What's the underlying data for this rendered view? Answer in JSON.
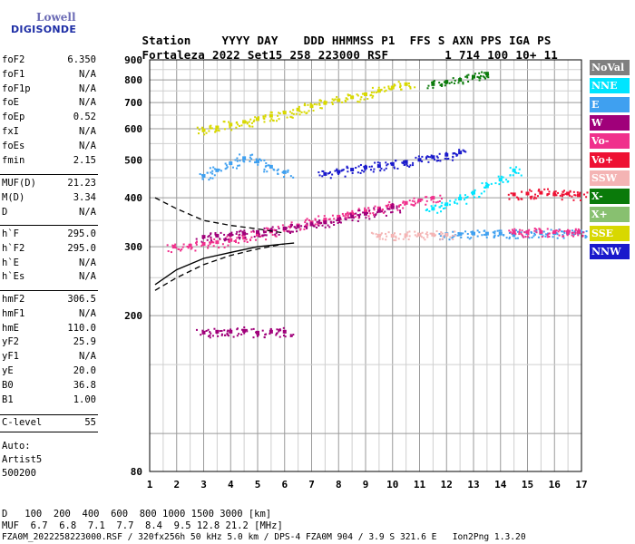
{
  "logo": {
    "line1": "Lowell",
    "line2": "DIGISONDE"
  },
  "header": {
    "row1": [
      "Station",
      "YYYY",
      "DAY",
      "DDD",
      "HHMMSS",
      "P1",
      "FFS",
      "S",
      "AXN",
      "PPS",
      "IGA",
      "PS"
    ],
    "row2": [
      "Fortaleza",
      "2022",
      "Set15",
      "258",
      "223000",
      "RSF",
      "",
      "1",
      "714",
      "100",
      "10+",
      "11"
    ]
  },
  "params_group1": [
    {
      "label": "foF2",
      "value": "6.350"
    },
    {
      "label": "foF1",
      "value": "N/A"
    },
    {
      "label": "foF1p",
      "value": "N/A"
    },
    {
      "label": "foE",
      "value": "N/A"
    },
    {
      "label": "foEp",
      "value": "0.52"
    },
    {
      "label": "fxI",
      "value": "N/A"
    },
    {
      "label": "foEs",
      "value": "N/A"
    },
    {
      "label": "fmin",
      "value": "2.15"
    }
  ],
  "params_group2": [
    {
      "label": "MUF(D)",
      "value": "21.23"
    },
    {
      "label": "M(D)",
      "value": "3.34"
    },
    {
      "label": "D",
      "value": "N/A"
    }
  ],
  "params_group3": [
    {
      "label": "h`F",
      "value": "295.0"
    },
    {
      "label": "h`F2",
      "value": "295.0"
    },
    {
      "label": "h`E",
      "value": "N/A"
    },
    {
      "label": "h`Es",
      "value": "N/A"
    }
  ],
  "params_group4": [
    {
      "label": "hmF2",
      "value": "306.5"
    },
    {
      "label": "hmF1",
      "value": "N/A"
    },
    {
      "label": "hmE",
      "value": "110.0"
    },
    {
      "label": "yF2",
      "value": "25.9"
    },
    {
      "label": "yF1",
      "value": "N/A"
    },
    {
      "label": "yE",
      "value": "20.0"
    },
    {
      "label": "B0",
      "value": "36.8"
    },
    {
      "label": "B1",
      "value": "1.00"
    }
  ],
  "clevel": {
    "label": "C-level",
    "value": "55"
  },
  "auto": {
    "line1": "Auto:",
    "line2": "Artist5",
    "line3": "500200"
  },
  "legend": [
    {
      "label": "NoVal",
      "bg": "#808080",
      "fg": "#ffffff"
    },
    {
      "label": "NNE",
      "bg": "#00e5ff",
      "fg": "#ffffff"
    },
    {
      "label": "E",
      "bg": "#3fa0f0",
      "fg": "#ffffff"
    },
    {
      "label": "W",
      "bg": "#a0007a",
      "fg": "#ffffff"
    },
    {
      "label": "Vo-",
      "bg": "#f0308c",
      "fg": "#ffffff"
    },
    {
      "label": "Vo+",
      "bg": "#ee1133",
      "fg": "#ffffff"
    },
    {
      "label": "SSW",
      "bg": "#f4b4b4",
      "fg": "#ffffff"
    },
    {
      "label": "X-",
      "bg": "#0a7a0a",
      "fg": "#ffffff"
    },
    {
      "label": "X+",
      "bg": "#88c070",
      "fg": "#ffffff"
    },
    {
      "label": "SSE",
      "bg": "#d8d800",
      "fg": "#ffffff"
    },
    {
      "label": "NNW",
      "bg": "#1a1acc",
      "fg": "#ffffff"
    }
  ],
  "bottom": {
    "d_label": "D",
    "d_values": "   100  200  400  600  800 1000 1500 3000 [km]",
    "muf_label": "MUF",
    "muf_values": "  6.7  6.8  7.1  7.7  8.4  9.5 12.8 21.2 [MHz]",
    "footer": "FZA0M_2022258223000.RSF / 320fx256h 50 kHz 5.0 km / DPS-4 FZA0M 904 / 3.9 S 321.6 E   Ion2Png 1.3.20"
  },
  "chart_data": {
    "type": "scatter",
    "xlim": [
      1,
      17
    ],
    "ylim": [
      80,
      900
    ],
    "x_ticks": [
      1,
      2,
      3,
      4,
      5,
      6,
      7,
      8,
      9,
      10,
      11,
      12,
      13,
      14,
      15,
      16,
      17
    ],
    "y_ticks": [
      80,
      200,
      300,
      400,
      500,
      600,
      700,
      800,
      900
    ],
    "y_scale": "log",
    "grid": true,
    "legend_position": "right",
    "traces": [
      {
        "name": "o-trace",
        "color": "#f0308c",
        "x": [
          1.9,
          2.5,
          3.0,
          3.5,
          4.0,
          4.5,
          5.0,
          5.5,
          6.0,
          6.5,
          7.0,
          7.5,
          8.0,
          8.5,
          9.0,
          9.5,
          10.0,
          10.5,
          11.0,
          11.5
        ],
        "y": [
          300,
          302,
          305,
          308,
          312,
          316,
          322,
          328,
          334,
          340,
          346,
          352,
          358,
          364,
          370,
          376,
          382,
          388,
          394,
          400
        ]
      },
      {
        "name": "x-trace",
        "color": "#a0007a",
        "x": [
          3.0,
          3.5,
          4.0,
          4.5,
          5.0,
          5.5,
          6.0,
          6.5,
          7.0,
          7.5,
          8.0,
          8.5,
          9.0,
          9.5,
          10.0
        ],
        "y": [
          318,
          320,
          322,
          324,
          327,
          330,
          334,
          338,
          342,
          346,
          352,
          358,
          364,
          370,
          378
        ]
      },
      {
        "name": "second-hop",
        "color": "#d8d800",
        "x": [
          3.0,
          3.5,
          4.0,
          4.5,
          5.0,
          5.5,
          6.0,
          6.5,
          7.0,
          7.5,
          8.0,
          8.5,
          9.0,
          9.5,
          10.0,
          10.5
        ],
        "y": [
          595,
          605,
          615,
          625,
          635,
          648,
          660,
          672,
          685,
          698,
          710,
          722,
          735,
          750,
          765,
          780
        ]
      },
      {
        "name": "third-hop",
        "color": "#0a7a0a",
        "x": [
          11.5,
          12.0,
          12.5,
          13.0,
          13.5
        ],
        "y": [
          780,
          790,
          800,
          815,
          830
        ]
      },
      {
        "name": "blue-cloud",
        "color": "#3fa0f0",
        "x": [
          3.0,
          3.5,
          4.0,
          4.5,
          5.0,
          5.5,
          6.0
        ],
        "y": [
          455,
          470,
          490,
          505,
          495,
          480,
          465
        ]
      },
      {
        "name": "upper-line",
        "color": "#1a1acc",
        "x": [
          7.5,
          8.0,
          8.5,
          9.0,
          9.5,
          10.0,
          10.5,
          11.0,
          11.5,
          12.0,
          12.5
        ],
        "y": [
          460,
          466,
          472,
          478,
          482,
          488,
          494,
          500,
          508,
          515,
          522
        ]
      },
      {
        "name": "ext-blue",
        "color": "#3fa0f0",
        "x": [
          12.0,
          12.5,
          13.0,
          13.5,
          14.0,
          14.5,
          15.0,
          15.5,
          16.0,
          16.5,
          16.9
        ],
        "y": [
          323,
          323,
          324,
          324,
          324,
          324,
          325,
          325,
          325,
          325,
          326
        ]
      },
      {
        "name": "ext-magenta",
        "color": "#f0308c",
        "x": [
          14.5,
          15.0,
          15.5,
          16.0,
          16.5,
          16.9
        ],
        "y": [
          327,
          327,
          327,
          327,
          327,
          327
        ]
      },
      {
        "name": "upper-cyan",
        "color": "#00e5ff",
        "x": [
          11.5,
          12.0,
          12.5,
          13.0,
          13.5,
          14.0,
          14.5
        ],
        "y": [
          375,
          385,
          398,
          412,
          428,
          445,
          470
        ]
      },
      {
        "name": "red-tail",
        "color": "#ee1133",
        "x": [
          14.5,
          15.0,
          15.5,
          16.0,
          16.5,
          16.9
        ],
        "y": [
          408,
          410,
          412,
          408,
          410,
          406
        ]
      },
      {
        "name": "low-es",
        "color": "#a0007a",
        "x": [
          3.0,
          3.5,
          4.0,
          4.5,
          5.0,
          5.5,
          6.0
        ],
        "y": [
          181,
          182,
          182,
          183,
          181,
          182,
          182
        ]
      },
      {
        "name": "ssw-fill",
        "color": "#f4b4b4",
        "x": [
          9.5,
          10.0,
          10.5,
          11.0,
          11.5,
          12.0
        ],
        "y": [
          320,
          320,
          321,
          322,
          322,
          322
        ]
      }
    ],
    "profile_lines": [
      {
        "name": "profile-solid",
        "style": "solid",
        "x": [
          1.2,
          2.0,
          3.0,
          4.0,
          5.0,
          6.0,
          6.35
        ],
        "y": [
          240,
          262,
          280,
          290,
          300,
          305,
          306.5
        ]
      },
      {
        "name": "profile-dashed-upper",
        "style": "dashed",
        "x": [
          1.2,
          2.0,
          3.0,
          4.0,
          5.0,
          6.0
        ],
        "y": [
          400,
          375,
          350,
          340,
          333,
          325
        ]
      },
      {
        "name": "profile-dashed-lower",
        "style": "dashed",
        "x": [
          1.2,
          2.0,
          3.0,
          4.0,
          5.0,
          6.0
        ],
        "y": [
          232,
          250,
          270,
          285,
          296,
          305
        ]
      }
    ]
  }
}
